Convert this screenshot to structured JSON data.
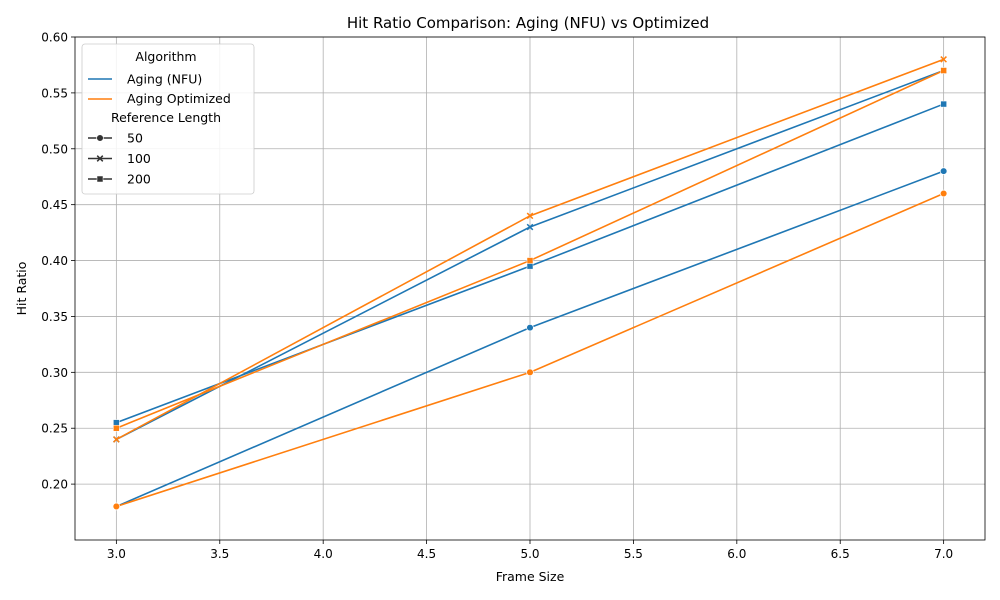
{
  "chart_data": {
    "type": "line",
    "title": "Hit Ratio Comparison: Aging (NFU) vs Optimized",
    "xlabel": "Frame Size",
    "ylabel": "Hit Ratio",
    "xlim": [
      2.8,
      7.2
    ],
    "ylim": [
      0.15,
      0.6
    ],
    "x_ticks": [
      "3.0",
      "3.5",
      "4.0",
      "4.5",
      "5.0",
      "5.5",
      "6.0",
      "6.5",
      "7.0"
    ],
    "y_ticks": [
      "0.20",
      "0.25",
      "0.30",
      "0.35",
      "0.40",
      "0.45",
      "0.50",
      "0.55",
      "0.60"
    ],
    "grid": true,
    "legend_placement": "top-left",
    "legend": {
      "hue_title": "Algorithm",
      "hue_entries": [
        {
          "name": "Aging (NFU)",
          "color": "#1f77b4"
        },
        {
          "name": "Aging Optimized",
          "color": "#ff7f0e"
        }
      ],
      "style_title": "Reference Length",
      "style_entries": [
        {
          "name": "50",
          "marker": "circle"
        },
        {
          "name": "100",
          "marker": "x"
        },
        {
          "name": "200",
          "marker": "square"
        }
      ]
    },
    "series": [
      {
        "algorithm": "Aging (NFU)",
        "ref_length": "50",
        "color": "#1f77b4",
        "marker": "circle",
        "x": [
          3,
          5,
          7
        ],
        "y": [
          0.18,
          0.34,
          0.48
        ]
      },
      {
        "algorithm": "Aging (NFU)",
        "ref_length": "100",
        "color": "#1f77b4",
        "marker": "x",
        "x": [
          3,
          5,
          7
        ],
        "y": [
          0.24,
          0.43,
          0.57
        ]
      },
      {
        "algorithm": "Aging (NFU)",
        "ref_length": "200",
        "color": "#1f77b4",
        "marker": "square",
        "x": [
          3,
          5,
          7
        ],
        "y": [
          0.255,
          0.395,
          0.54
        ]
      },
      {
        "algorithm": "Aging Optimized",
        "ref_length": "50",
        "color": "#ff7f0e",
        "marker": "circle",
        "x": [
          3,
          5,
          7
        ],
        "y": [
          0.18,
          0.3,
          0.46
        ]
      },
      {
        "algorithm": "Aging Optimized",
        "ref_length": "100",
        "color": "#ff7f0e",
        "marker": "x",
        "x": [
          3,
          5,
          7
        ],
        "y": [
          0.24,
          0.44,
          0.58
        ]
      },
      {
        "algorithm": "Aging Optimized",
        "ref_length": "200",
        "color": "#ff7f0e",
        "marker": "square",
        "x": [
          3,
          5,
          7
        ],
        "y": [
          0.25,
          0.4,
          0.57
        ]
      }
    ]
  }
}
